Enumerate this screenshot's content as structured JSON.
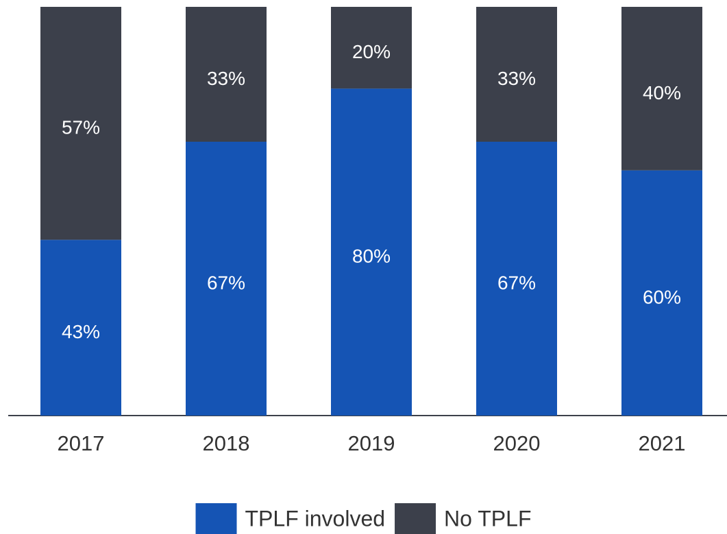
{
  "chart_data": {
    "type": "stacked-bar",
    "categories": [
      "2017",
      "2018",
      "2019",
      "2020",
      "2021"
    ],
    "series": [
      {
        "name": "TPLF involved",
        "color": "#1554b4",
        "values": [
          43,
          67,
          80,
          67,
          60
        ],
        "value_labels": [
          "43%",
          "67%",
          "80%",
          "67%",
          "60%"
        ]
      },
      {
        "name": "No TPLF",
        "color": "#3c404b",
        "values": [
          57,
          33,
          20,
          33,
          40
        ],
        "value_labels": [
          "57%",
          "33%",
          "20%",
          "33%",
          "40%"
        ]
      }
    ],
    "ylim": [
      0,
      100
    ],
    "legend": "bottom"
  }
}
